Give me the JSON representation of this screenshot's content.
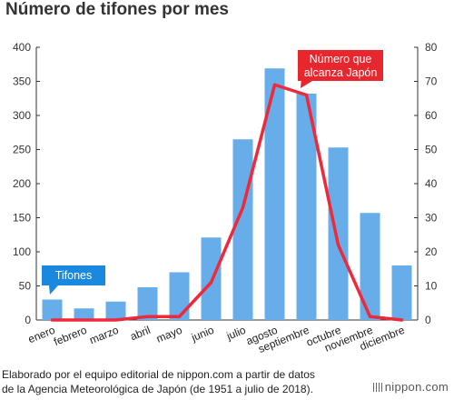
{
  "title": "Número de tifones por mes",
  "source": {
    "line1": "Elaborado por el equipo editorial de nippon.com a partir de datos",
    "line2": "de la Agencia Meteorológica de Japón (de 1951 a julio de 2018)."
  },
  "logo": "nippon.com",
  "colors": {
    "bar": "#67ade9",
    "line": "#ee2a3a",
    "axis": "#333333",
    "callout_line": "#e8262d",
    "callout_bar": "#1a88de"
  },
  "chart_data": {
    "type": "bar",
    "categories": [
      "enero",
      "febrero",
      "marzo",
      "abril",
      "mayo",
      "junio",
      "julio",
      "agosto",
      "septiembre",
      "octubre",
      "noviembre",
      "diciembre"
    ],
    "series": [
      {
        "name": "Tifones",
        "type": "bar",
        "axis": "left",
        "values": [
          30,
          17,
          27,
          48,
          70,
          121,
          265,
          369,
          332,
          253,
          157,
          80
        ]
      },
      {
        "name": "Número que alcanza Japón",
        "type": "line",
        "axis": "right",
        "values": [
          0,
          0,
          0,
          1,
          1,
          11,
          33,
          69,
          66,
          22,
          1,
          0
        ]
      }
    ],
    "ylim_left": [
      0,
      400
    ],
    "yticks_left": [
      0,
      50,
      100,
      150,
      200,
      250,
      300,
      350,
      400
    ],
    "ylim_right": [
      0,
      80
    ],
    "yticks_right": [
      0,
      10,
      20,
      30,
      40,
      50,
      60,
      70,
      80
    ],
    "legend": {
      "bar_callout": "Tifones",
      "line_callout": [
        "Número que",
        "alcanza Japón"
      ]
    }
  }
}
